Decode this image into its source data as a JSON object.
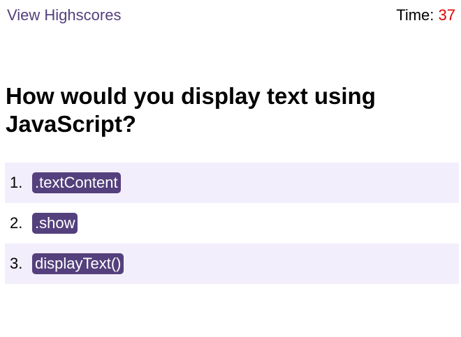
{
  "header": {
    "highscores_label": "View Highscores",
    "timer_label": "Time:",
    "timer_value": "37"
  },
  "quiz": {
    "question": "How would you display text using JavaScript?",
    "answers": [
      {
        "number": "1.",
        "label": ".textContent"
      },
      {
        "number": "2.",
        "label": ".show"
      },
      {
        "number": "3.",
        "label": "displayText()"
      }
    ]
  },
  "colors": {
    "accent": "#54407c",
    "timer": "#e00000",
    "row_highlight": "#f3eefc"
  }
}
